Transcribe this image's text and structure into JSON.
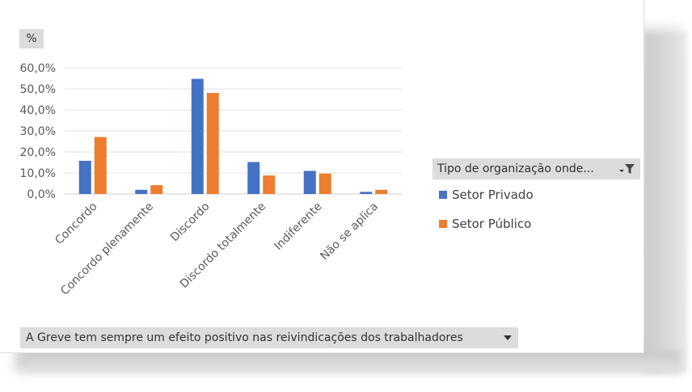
{
  "value_field": {
    "label": "%"
  },
  "legend": {
    "title": "Tipo de organização onde...",
    "items": [
      {
        "label": "Setor Privado",
        "color": "#4472c4"
      },
      {
        "label": "Setor Público",
        "color": "#ed7d31"
      }
    ]
  },
  "axis_field": {
    "label": "A Greve tem sempre um efeito positivo nas reivindicações dos trabalhadores"
  },
  "chart_data": {
    "type": "bar",
    "categories": [
      "Concordo",
      "Concordo plenamente",
      "Discordo",
      "Discordo totalmente",
      "Indiferente",
      "Não se aplica"
    ],
    "series": [
      {
        "name": "Setor Privado",
        "values": [
          15.8,
          2.0,
          54.8,
          15.2,
          11.0,
          1.0
        ],
        "color": "#4472c4"
      },
      {
        "name": "Setor Público",
        "values": [
          27.1,
          4.2,
          48.1,
          8.8,
          9.7,
          2.0
        ],
        "color": "#ed7d31"
      }
    ],
    "ylim": [
      0,
      60
    ],
    "yticks": [
      0,
      10,
      20,
      30,
      40,
      50,
      60
    ],
    "ytick_labels": [
      "0,0%",
      "10,0%",
      "20,0%",
      "30,0%",
      "40,0%",
      "50,0%",
      "60,0%"
    ],
    "grid": true,
    "legend_position": "right"
  }
}
